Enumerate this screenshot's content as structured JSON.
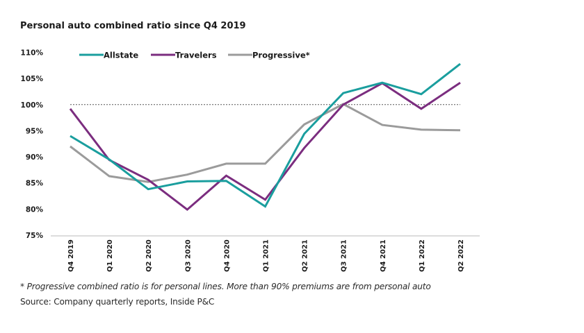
{
  "chart_data": {
    "type": "line",
    "title": "Personal auto combined ratio since Q4 2019",
    "xlabel": "",
    "ylabel": "",
    "categories": [
      "Q4 2019",
      "Q1 2020",
      "Q2 2020",
      "Q3 2020",
      "Q4 2020",
      "Q1 2021",
      "Q2 2021",
      "Q3 2021",
      "Q4 2021",
      "Q1 2022",
      "Q2 2022"
    ],
    "y_ticks": [
      "75%",
      "80%",
      "85%",
      "90%",
      "95%",
      "100%",
      "105%",
      "110%"
    ],
    "ylim": [
      75,
      110
    ],
    "y_unit": "%",
    "grid": false,
    "reference_line": {
      "value": 100,
      "style": "dashed"
    },
    "legend_position": "top",
    "series": [
      {
        "name": "Allstate",
        "color": "#1a9e9e",
        "values": [
          94.0,
          89.5,
          83.8,
          85.3,
          85.4,
          80.5,
          94.4,
          102.2,
          104.2,
          102.0,
          107.8
        ]
      },
      {
        "name": "Travelers",
        "color": "#7b2d7f",
        "values": [
          99.2,
          89.4,
          85.6,
          79.9,
          86.4,
          81.8,
          91.7,
          100.0,
          104.1,
          99.2,
          104.2
        ]
      },
      {
        "name": "Progressive*",
        "color": "#9b9b9b",
        "values": [
          92.0,
          86.3,
          85.2,
          86.6,
          88.7,
          88.7,
          96.2,
          100.1,
          96.1,
          95.2,
          95.1
        ]
      }
    ]
  },
  "footnote": "* Progressive combined ratio is for personal lines. More than 90% premiums are from personal auto",
  "source": "Source: Company quarterly reports, Inside P&C"
}
